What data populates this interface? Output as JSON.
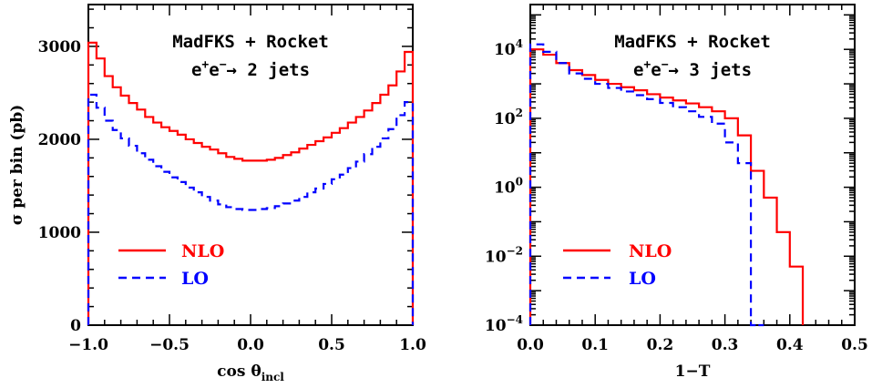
{
  "chart_data": [
    {
      "type": "line",
      "style": "step-histogram",
      "annotation": {
        "line1": "MadFKS + Rocket",
        "process_prefix": "e",
        "process_sup1": "+",
        "process_mid": "e",
        "process_sup2": "−",
        "process_suffix": "→ 2 jets"
      },
      "xlabel": "cos θ",
      "xlabel_sub": "incl",
      "ylabel": "σ per bin (pb)",
      "xlim": [
        -1.0,
        1.0
      ],
      "ylim": [
        0,
        3450
      ],
      "xticks": [
        -1.0,
        -0.5,
        0.0,
        0.5,
        1.0
      ],
      "xtick_labels": [
        "−1.0",
        "−0.5",
        "0.0",
        "0.5",
        "1.0"
      ],
      "yticks": [
        0,
        1000,
        2000,
        3000
      ],
      "ytick_labels": [
        "0",
        "1000",
        "2000",
        "3000"
      ],
      "y_scale": "linear",
      "legend_position": "lower-left",
      "bin_edges": [
        -1.0,
        -0.95,
        -0.9,
        -0.85,
        -0.8,
        -0.75,
        -0.7,
        -0.65,
        -0.6,
        -0.55,
        -0.5,
        -0.45,
        -0.4,
        -0.35,
        -0.3,
        -0.25,
        -0.2,
        -0.15,
        -0.1,
        -0.05,
        0.0,
        0.05,
        0.1,
        0.15,
        0.2,
        0.25,
        0.3,
        0.35,
        0.4,
        0.45,
        0.5,
        0.55,
        0.6,
        0.65,
        0.7,
        0.75,
        0.8,
        0.85,
        0.9,
        0.95,
        1.0
      ],
      "series": [
        {
          "name": "NLO",
          "color": "#ff0000",
          "dash": "solid",
          "values": [
            3040,
            2870,
            2680,
            2560,
            2470,
            2390,
            2320,
            2240,
            2180,
            2130,
            2090,
            2050,
            2000,
            1960,
            1920,
            1890,
            1850,
            1810,
            1790,
            1770,
            1770,
            1770,
            1780,
            1800,
            1830,
            1860,
            1900,
            1940,
            1980,
            2020,
            2070,
            2120,
            2180,
            2240,
            2310,
            2390,
            2480,
            2580,
            2730,
            2940
          ]
        },
        {
          "name": "LO",
          "color": "#0000ff",
          "dash": "dashed",
          "values": [
            2480,
            2340,
            2200,
            2100,
            2010,
            1930,
            1850,
            1780,
            1710,
            1650,
            1590,
            1540,
            1480,
            1430,
            1380,
            1340,
            1300,
            1270,
            1250,
            1240,
            1240,
            1250,
            1260,
            1280,
            1310,
            1340,
            1380,
            1430,
            1470,
            1520,
            1570,
            1620,
            1690,
            1760,
            1840,
            1920,
            2010,
            2110,
            2260,
            2400
          ]
        }
      ]
    },
    {
      "type": "line",
      "style": "step-histogram",
      "annotation": {
        "line1": "MadFKS + Rocket",
        "process_prefix": "e",
        "process_sup1": "+",
        "process_mid": "e",
        "process_sup2": "−",
        "process_suffix": "→ 3 jets"
      },
      "xlabel": "1−T",
      "ylabel": "",
      "xlim": [
        0.0,
        0.5
      ],
      "ylim_log10": [
        -4,
        5.3
      ],
      "y_scale": "log",
      "xticks": [
        0.0,
        0.1,
        0.2,
        0.3,
        0.4,
        0.5
      ],
      "xtick_labels": [
        "0.0",
        "0.1",
        "0.2",
        "0.3",
        "0.4",
        "0.5"
      ],
      "yticks_log10": [
        -4,
        -2,
        0,
        2,
        4
      ],
      "ytick_base": "10",
      "ytick_exponents": [
        "−4",
        "−2",
        "0",
        "2",
        "4"
      ],
      "legend_position": "lower-left",
      "bin_edges": [
        0.0,
        0.02,
        0.04,
        0.06,
        0.08,
        0.1,
        0.12,
        0.14,
        0.16,
        0.18,
        0.2,
        0.22,
        0.24,
        0.26,
        0.28,
        0.3,
        0.32,
        0.34,
        0.36,
        0.38,
        0.4,
        0.42
      ],
      "series": [
        {
          "name": "NLO",
          "color": "#ff0000",
          "dash": "solid",
          "values": [
            10000,
            7000,
            4000,
            2500,
            1800,
            1300,
            1000,
            800,
            650,
            500,
            400,
            330,
            270,
            210,
            160,
            100,
            32,
            3,
            0.5,
            0.05,
            0.005
          ]
        },
        {
          "name": "LO",
          "color": "#0000ff",
          "dash": "dashed",
          "values": [
            14000,
            8500,
            4000,
            2000,
            1400,
            1000,
            760,
            600,
            470,
            360,
            280,
            210,
            160,
            110,
            70,
            20,
            5,
            null,
            null,
            null,
            null
          ]
        }
      ]
    }
  ]
}
